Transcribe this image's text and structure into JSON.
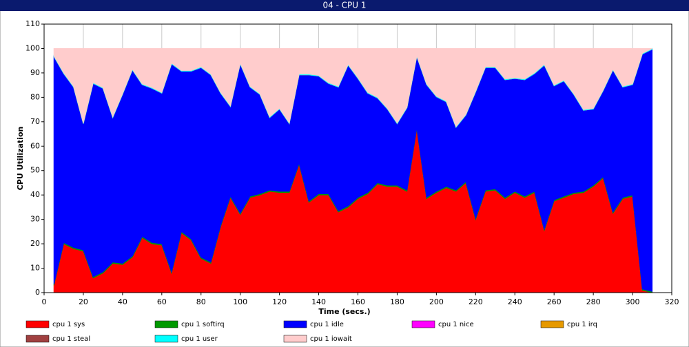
{
  "chart_data": {
    "type": "stacked_area",
    "title": "04 - CPU 1",
    "xlabel": "Time (secs.)",
    "ylabel": "CPU Utilization",
    "x": [
      5,
      10,
      15,
      20,
      25,
      30,
      35,
      40,
      45,
      50,
      55,
      60,
      65,
      70,
      75,
      80,
      85,
      90,
      95,
      100,
      105,
      110,
      115,
      120,
      125,
      130,
      135,
      140,
      145,
      150,
      155,
      160,
      165,
      170,
      175,
      180,
      185,
      190,
      195,
      200,
      205,
      210,
      215,
      220,
      225,
      230,
      235,
      240,
      245,
      250,
      255,
      260,
      265,
      270,
      275,
      280,
      285,
      290,
      295,
      300,
      305,
      310
    ],
    "series": [
      {
        "name": "cpu 1 sys",
        "color": "#ff0000",
        "values": [
          3,
          20,
          18,
          17,
          6,
          8,
          12,
          11.5,
          14.5,
          22.5,
          20,
          19.5,
          8,
          24.5,
          21.5,
          14,
          12,
          27,
          39,
          32,
          39,
          40,
          41.5,
          41,
          41,
          52.5,
          37,
          40,
          40,
          33,
          35,
          38.5,
          40.5,
          44.5,
          43.5,
          43.5,
          41.5,
          67,
          38.5,
          41,
          43,
          41.5,
          45,
          30,
          41.5,
          42,
          38.5,
          41,
          39,
          41,
          25.5,
          37.5,
          39,
          40.5,
          41,
          43.5,
          47,
          32.5,
          38.5,
          39.5,
          1,
          0
        ]
      },
      {
        "name": "cpu 1 softirq",
        "color": "#009900",
        "values": [
          0.5,
          0.5,
          0.5,
          0.5,
          0.5,
          0.5,
          0.5,
          0.5,
          0.5,
          0.5,
          0.5,
          0.5,
          0.5,
          0.5,
          0.5,
          0.5,
          0.5,
          0.5,
          0.5,
          0.5,
          0.5,
          0.5,
          0.5,
          0.5,
          0.5,
          0.5,
          0.5,
          0.5,
          0.5,
          0.5,
          0.5,
          0.5,
          0.5,
          0.5,
          0.5,
          0.5,
          0.5,
          0.5,
          0.5,
          0.5,
          0.5,
          0.5,
          0.5,
          0.5,
          0.5,
          0.5,
          0.5,
          0.5,
          0.5,
          0.5,
          0.5,
          0.5,
          0.5,
          0.5,
          0.5,
          0.5,
          0.5,
          0.5,
          0.5,
          0.5,
          0.5,
          0.5
        ]
      },
      {
        "name": "cpu 1 idle",
        "color": "#0000ff",
        "values": [
          93.2,
          69.2,
          65.7,
          51.7,
          79.2,
          75.2,
          59.2,
          69.2,
          76.2,
          62.2,
          63.2,
          61.7,
          85.2,
          65.7,
          68.7,
          77.7,
          76.7,
          54.2,
          36.7,
          61.2,
          44.7,
          40.7,
          29.7,
          33.7,
          27.7,
          36.2,
          51.7,
          48.2,
          45.2,
          50.7,
          57.7,
          48.7,
          40.7,
          34.7,
          31.2,
          25.2,
          33.7,
          29.2,
          46.2,
          38.7,
          34.7,
          25.7,
          27.2,
          51.7,
          50.2,
          49.7,
          48.2,
          46.2,
          47.7,
          48.2,
          67.2,
          46.7,
          47.2,
          40.2,
          33.2,
          31.2,
          35.2,
          58.2,
          45.2,
          45.2,
          96.2,
          99.2
        ]
      },
      {
        "name": "cpu 1 nice",
        "color": "#ff00ff",
        "values": [
          0,
          0,
          0,
          0,
          0,
          0,
          0,
          0,
          0,
          0,
          0,
          0,
          0,
          0,
          0,
          0,
          0,
          0,
          0,
          0,
          0,
          0,
          0,
          0,
          0,
          0,
          0,
          0,
          0,
          0,
          0,
          0,
          0,
          0,
          0,
          0,
          0,
          0,
          0,
          0,
          0,
          0,
          0,
          0,
          0,
          0,
          0,
          0,
          0,
          0,
          0,
          0,
          0,
          0,
          0,
          0,
          0,
          0,
          0,
          0,
          0,
          0
        ]
      },
      {
        "name": "cpu 1 irq",
        "color": "#e69900",
        "values": [
          0,
          0,
          0,
          0,
          0,
          0,
          0,
          0,
          0,
          0,
          0,
          0,
          0,
          0,
          0,
          0,
          0,
          0,
          0,
          0,
          0,
          0,
          0,
          0,
          0,
          0,
          0,
          0,
          0,
          0,
          0,
          0,
          0,
          0,
          0,
          0,
          0,
          0,
          0,
          0,
          0,
          0,
          0,
          0,
          0,
          0,
          0,
          0,
          0,
          0,
          0,
          0,
          0,
          0,
          0,
          0,
          0,
          0,
          0,
          0,
          0,
          0
        ]
      },
      {
        "name": "cpu 1 steal",
        "color": "#a04040",
        "values": [
          0,
          0,
          0,
          0,
          0,
          0,
          0,
          0,
          0,
          0,
          0,
          0,
          0,
          0,
          0,
          0,
          0,
          0,
          0,
          0,
          0,
          0,
          0,
          0,
          0,
          0,
          0,
          0,
          0,
          0,
          0,
          0,
          0,
          0,
          0,
          0,
          0,
          0,
          0,
          0,
          0,
          0,
          0,
          0,
          0,
          0,
          0,
          0,
          0,
          0,
          0,
          0,
          0,
          0,
          0,
          0,
          0,
          0,
          0,
          0,
          0,
          0
        ]
      },
      {
        "name": "cpu 1 user",
        "color": "#00ffff",
        "values": [
          0.3,
          0.3,
          0.3,
          0.3,
          0.3,
          0.3,
          0.3,
          0.3,
          0.3,
          0.3,
          0.3,
          0.3,
          0.3,
          0.3,
          0.3,
          0.3,
          0.3,
          0.3,
          0.3,
          0.3,
          0.3,
          0.3,
          0.3,
          0.3,
          0.3,
          0.3,
          0.3,
          0.3,
          0.3,
          0.3,
          0.3,
          0.3,
          0.3,
          0.3,
          0.3,
          0.3,
          0.3,
          0.3,
          0.3,
          0.3,
          0.3,
          0.3,
          0.3,
          0.3,
          0.3,
          0.3,
          0.3,
          0.3,
          0.3,
          0.3,
          0.3,
          0.3,
          0.3,
          0.3,
          0.3,
          0.3,
          0.3,
          0.3,
          0.3,
          0.3,
          0.3,
          0.3
        ]
      },
      {
        "name": "cpu 1 iowait",
        "color": "#ffcccc",
        "values": [
          3,
          10,
          15.5,
          30.5,
          14,
          16,
          28,
          18.5,
          8.5,
          14.5,
          16,
          18,
          6,
          9,
          9,
          7.5,
          10.5,
          18,
          23.5,
          6,
          15.5,
          18.5,
          28,
          24.5,
          30.5,
          10.5,
          10.5,
          11,
          14,
          15.5,
          6.5,
          12,
          18,
          20,
          24.5,
          30.5,
          24,
          3,
          14.5,
          19.5,
          21.5,
          32,
          27,
          17.5,
          7.5,
          7.5,
          12.5,
          12,
          12.5,
          10,
          6.5,
          15,
          13,
          18.5,
          25,
          24.5,
          17,
          8.5,
          15.5,
          14.5,
          2,
          0
        ]
      }
    ],
    "xlim": [
      0,
      320
    ],
    "xticks": [
      0,
      20,
      40,
      60,
      80,
      100,
      120,
      140,
      160,
      180,
      200,
      220,
      240,
      260,
      280,
      300,
      320
    ],
    "ylim": [
      0,
      110
    ],
    "yticks": [
      0,
      10,
      20,
      30,
      40,
      50,
      60,
      70,
      80,
      90,
      100,
      110
    ],
    "grid": true
  }
}
